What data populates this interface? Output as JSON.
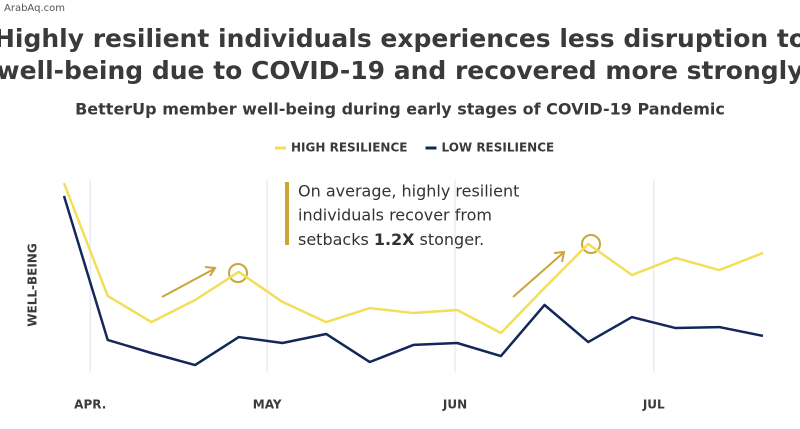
{
  "watermark": "ArabAq.com",
  "chart_data": {
    "type": "line",
    "title": [
      "Highly resilient individuals experiences less disruption to",
      "well-being due to COVID-19 and recovered more strongly"
    ],
    "subtitle": "BetterUp member well-being during early stages of COVID-19 Pandemic",
    "y_label": "WELL-BEING",
    "annotation": [
      "On average, highly resilient",
      "individuals recover from",
      "setbacks",
      "1.2X",
      "stonger."
    ],
    "x": [
      0,
      1,
      2,
      3,
      4,
      5,
      6,
      7,
      8,
      9,
      10,
      11,
      12,
      13,
      14,
      15,
      16
    ],
    "xlim": [
      0,
      16
    ],
    "xticks": [
      {
        "value": 0.6,
        "label": "APR."
      },
      {
        "value": 4.65,
        "label": "MAY"
      },
      {
        "value": 8.95,
        "label": "JUN"
      },
      {
        "value": 13.5,
        "label": "JUL"
      }
    ],
    "ylim": [
      0,
      100
    ],
    "grid": true,
    "series": [
      {
        "name": "HIGH RESILIENCE",
        "color": "#f3de5a",
        "values": [
          98.4,
          39.6,
          26.0,
          37.5,
          52.1,
          36.5,
          26.0,
          33.3,
          30.7,
          32.3,
          20.3,
          43.8,
          66.7,
          50.5,
          59.4,
          53.1,
          62.0
        ]
      },
      {
        "name": "LOW RESILIENCE",
        "color": "#13275a",
        "values": [
          91.7,
          16.7,
          9.9,
          3.6,
          18.2,
          15.1,
          19.8,
          5.2,
          14.1,
          15.1,
          8.3,
          34.9,
          15.6,
          28.6,
          22.9,
          23.4,
          18.8
        ]
      }
    ]
  }
}
